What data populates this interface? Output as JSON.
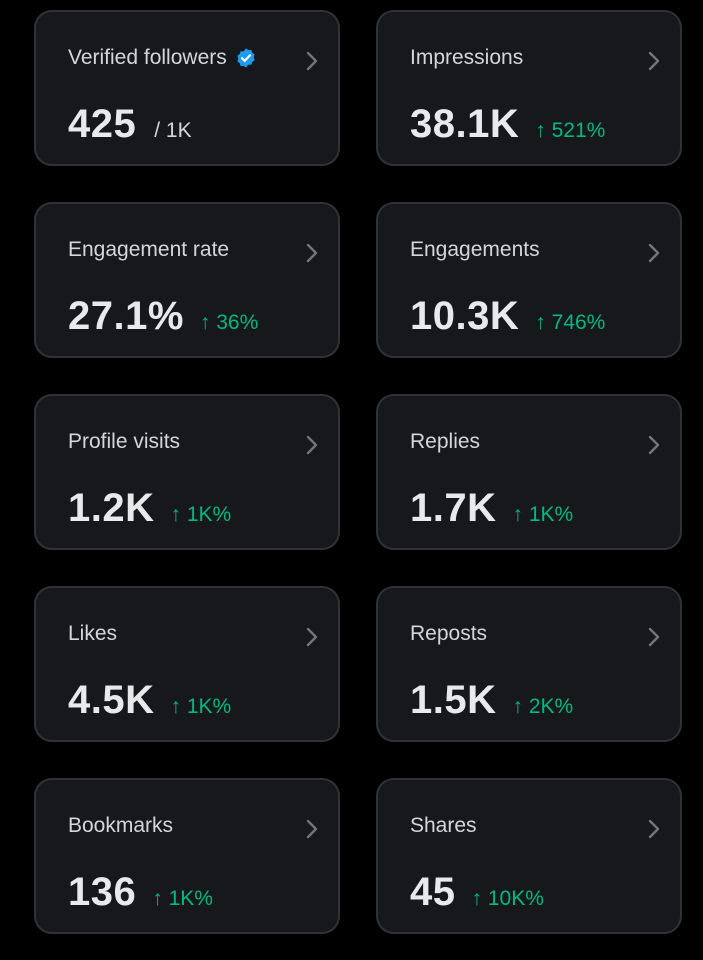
{
  "colors": {
    "background": "#000000",
    "card_background": "#16181c",
    "card_border": "#2f3336",
    "positive_change": "#00ba7c",
    "verified_badge": "#1d9bf0"
  },
  "cards": [
    {
      "title": "Verified followers",
      "value": "425",
      "denominator": "/ 1K",
      "icon": "verified-badge-icon"
    },
    {
      "title": "Impressions",
      "value": "38.1K",
      "change": "↑ 521%"
    },
    {
      "title": "Engagement rate",
      "value": "27.1%",
      "change": "↑ 36%"
    },
    {
      "title": "Engagements",
      "value": "10.3K",
      "change": "↑ 746%"
    },
    {
      "title": "Profile visits",
      "value": "1.2K",
      "change": "↑ 1K%"
    },
    {
      "title": "Replies",
      "value": "1.7K",
      "change": "↑ 1K%"
    },
    {
      "title": "Likes",
      "value": "4.5K",
      "change": "↑ 1K%"
    },
    {
      "title": "Reposts",
      "value": "1.5K",
      "change": "↑ 2K%"
    },
    {
      "title": "Bookmarks",
      "value": "136",
      "change": "↑ 1K%"
    },
    {
      "title": "Shares",
      "value": "45",
      "change": "↑ 10K%"
    }
  ]
}
